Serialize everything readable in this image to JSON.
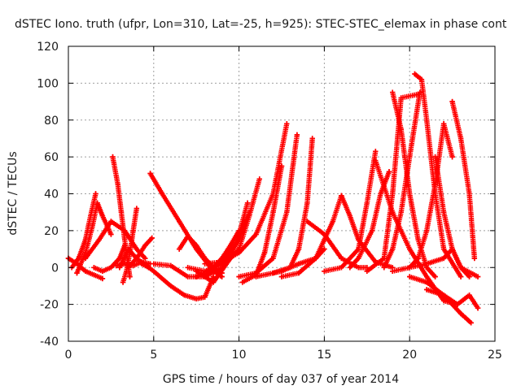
{
  "chart_data": {
    "type": "scatter",
    "title": "dSTEC Iono. truth (ufpr, Lon=310, Lat=-25, h=925): STEC-STEC_elemax in phase cont",
    "xlabel": "GPS time / hours of day 037 of year 2014",
    "ylabel": "dSTEC  / TECUs",
    "xlim": [
      0,
      25
    ],
    "ylim": [
      -40,
      120
    ],
    "xticks": [
      0,
      5,
      10,
      15,
      20,
      25
    ],
    "yticks": [
      -40,
      -20,
      0,
      20,
      40,
      60,
      80,
      100,
      120
    ],
    "grid": true,
    "marker": "plus",
    "color": "#ff0000",
    "series": [
      {
        "x": [
          0.0,
          0.5,
          1.0,
          1.5,
          2.0
        ],
        "y": [
          5,
          2,
          -2,
          -4,
          -6
        ]
      },
      {
        "x": [
          0.2,
          0.6,
          1.0,
          1.3,
          1.6
        ],
        "y": [
          0,
          5,
          15,
          28,
          40
        ]
      },
      {
        "x": [
          0.5,
          1.0,
          1.4,
          1.7,
          2.0,
          2.5
        ],
        "y": [
          -3,
          8,
          22,
          35,
          28,
          18
        ]
      },
      {
        "x": [
          1.0,
          1.8,
          2.5,
          3.3,
          4.0,
          4.5
        ],
        "y": [
          5,
          15,
          25,
          20,
          10,
          5
        ]
      },
      {
        "x": [
          1.5,
          2.0,
          2.5,
          3.0,
          3.3
        ],
        "y": [
          0,
          -2,
          0,
          5,
          12
        ]
      },
      {
        "x": [
          3.0,
          3.5,
          4.0,
          4.3,
          4.7
        ],
        "y": [
          0,
          10,
          5,
          2,
          0
        ]
      },
      {
        "x": [
          2.6,
          2.9,
          3.1,
          3.3,
          3.6
        ],
        "y": [
          60,
          45,
          30,
          15,
          -5
        ]
      },
      {
        "x": [
          3.2,
          3.4,
          3.6,
          3.8,
          4.0
        ],
        "y": [
          -8,
          -2,
          8,
          20,
          32
        ]
      },
      {
        "x": [
          2.8,
          3.3,
          3.8,
          4.3,
          4.8
        ],
        "y": [
          1,
          2,
          1,
          3,
          2
        ]
      },
      {
        "x": [
          3.5,
          4.0,
          4.5,
          4.9
        ],
        "y": [
          0,
          5,
          12,
          16
        ]
      },
      {
        "x": [
          4.8,
          5.5,
          6.5,
          7.5,
          8.5,
          9.0
        ],
        "y": [
          51,
          40,
          25,
          10,
          -2,
          -5
        ]
      },
      {
        "x": [
          4.0,
          5.0,
          6.0,
          6.8,
          7.5,
          8.0,
          8.5
        ],
        "y": [
          5,
          -2,
          -10,
          -15,
          -17,
          -16,
          -5
        ]
      },
      {
        "x": [
          5.0,
          6.0,
          7.0,
          8.0,
          8.5
        ],
        "y": [
          2,
          1,
          -5,
          -5,
          0
        ]
      },
      {
        "x": [
          6.5,
          7.0,
          7.5,
          8.0,
          8.5,
          9.0
        ],
        "y": [
          10,
          17,
          12,
          5,
          0,
          -3
        ]
      },
      {
        "x": [
          7.5,
          8.5,
          9.5,
          10.0,
          10.5
        ],
        "y": [
          -2,
          -8,
          5,
          18,
          35
        ]
      },
      {
        "x": [
          8.0,
          9.0,
          10.0,
          10.6,
          11.2
        ],
        "y": [
          -5,
          0,
          10,
          28,
          48
        ]
      },
      {
        "x": [
          7.0,
          8.0,
          9.0,
          10.0,
          10.6
        ],
        "y": [
          0,
          -2,
          2,
          15,
          30
        ]
      },
      {
        "x": [
          7.5,
          8.5,
          9.0,
          9.5,
          10.0
        ],
        "y": [
          -5,
          0,
          5,
          12,
          20
        ]
      },
      {
        "x": [
          8.0,
          9.0,
          10.0,
          11.0,
          12.0,
          12.8
        ],
        "y": [
          2,
          3,
          8,
          18,
          40,
          78
        ]
      },
      {
        "x": [
          10.0,
          11.0,
          12.0,
          12.8,
          13.4
        ],
        "y": [
          -5,
          -3,
          5,
          30,
          72
        ]
      },
      {
        "x": [
          10.2,
          11.0,
          11.5,
          12.0,
          12.5
        ],
        "y": [
          -8,
          -4,
          8,
          30,
          55
        ]
      },
      {
        "x": [
          12.0,
          13.0,
          13.5,
          14.0,
          14.3
        ],
        "y": [
          -3,
          0,
          10,
          35,
          70
        ]
      },
      {
        "x": [
          11.0,
          12.5,
          13.5,
          14.5,
          15.0
        ],
        "y": [
          -5,
          -2,
          2,
          5,
          10
        ]
      },
      {
        "x": [
          14.0,
          15.0,
          16.0,
          17.0,
          17.5
        ],
        "y": [
          25,
          18,
          5,
          0,
          0
        ]
      },
      {
        "x": [
          12.5,
          13.5,
          14.5,
          15.0,
          15.5,
          16.0
        ],
        "y": [
          -5,
          -3,
          5,
          15,
          25,
          39
        ]
      },
      {
        "x": [
          16.0,
          16.5,
          17.0,
          18.0,
          19.0
        ],
        "y": [
          39,
          28,
          15,
          3,
          0
        ]
      },
      {
        "x": [
          15.0,
          16.0,
          17.0,
          17.5,
          18.0
        ],
        "y": [
          -2,
          0,
          10,
          35,
          63
        ]
      },
      {
        "x": [
          16.5,
          17.0,
          17.8,
          18.3,
          18.8
        ],
        "y": [
          0,
          5,
          20,
          40,
          52
        ]
      },
      {
        "x": [
          18.0,
          19.0,
          20.0,
          21.0,
          22.0,
          22.8
        ],
        "y": [
          58,
          30,
          10,
          -5,
          -18,
          -20
        ]
      },
      {
        "x": [
          19.0,
          19.5,
          20.0,
          20.5,
          21.0,
          21.5
        ],
        "y": [
          95,
          75,
          40,
          15,
          0,
          -5
        ]
      },
      {
        "x": [
          17.5,
          18.5,
          19.0,
          19.5,
          20.5
        ],
        "y": [
          -2,
          5,
          40,
          92,
          94
        ]
      },
      {
        "x": [
          18.5,
          19.0,
          19.5,
          20.0,
          20.6
        ],
        "y": [
          0,
          10,
          30,
          60,
          95
        ]
      },
      {
        "x": [
          20.3,
          20.7,
          21.0,
          21.5,
          22.0,
          23.0
        ],
        "y": [
          105,
          102,
          80,
          40,
          10,
          -5
        ]
      },
      {
        "x": [
          20.0,
          20.5,
          21.0,
          21.5,
          22.0,
          22.5
        ],
        "y": [
          0,
          5,
          20,
          45,
          78,
          60
        ]
      },
      {
        "x": [
          21.5,
          22.0,
          22.5,
          23.0,
          23.5
        ],
        "y": [
          60,
          30,
          10,
          0,
          -5
        ]
      },
      {
        "x": [
          22.5,
          23.0,
          23.5,
          23.8
        ],
        "y": [
          90,
          70,
          40,
          5
        ]
      },
      {
        "x": [
          21.0,
          22.0,
          22.8,
          23.5,
          24.0
        ],
        "y": [
          -12,
          -15,
          -20,
          -15,
          -22
        ]
      },
      {
        "x": [
          20.0,
          21.0,
          22.0,
          23.0,
          23.6
        ],
        "y": [
          -5,
          -8,
          -15,
          -25,
          -30
        ]
      },
      {
        "x": [
          19.0,
          20.0,
          21.0,
          22.0,
          22.5,
          23.0,
          24.0
        ],
        "y": [
          -2,
          0,
          2,
          5,
          10,
          0,
          -5
        ]
      }
    ]
  }
}
